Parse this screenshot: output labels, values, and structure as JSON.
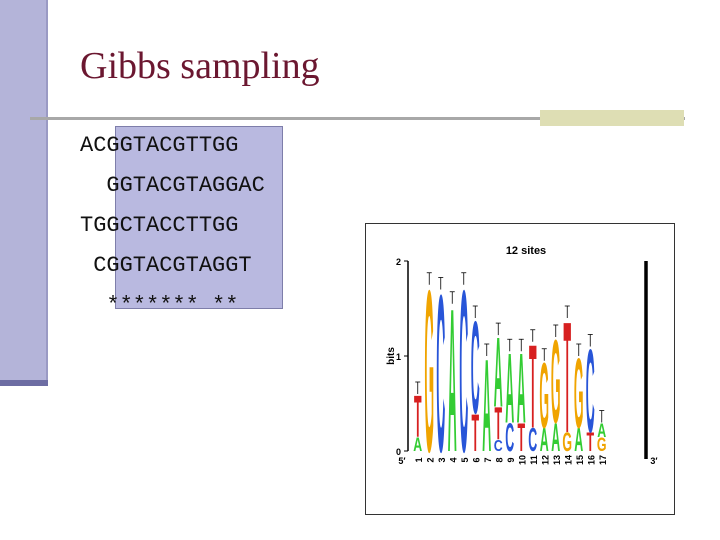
{
  "slide": {
    "title": "Gibbs sampling",
    "sequences": [
      "ACGGTACGTTGG",
      "  GGTACGTAGGAC",
      "TGGCTACCTTGG",
      " CGGTACGTAGGT",
      "  ******* **"
    ]
  },
  "logo": {
    "title": "12 sites",
    "ylabel": "bits",
    "y_ticks": [
      "0",
      "1",
      "2"
    ],
    "x_positions": [
      "5′",
      "1",
      "2",
      "3",
      "4",
      "5",
      "6",
      "7",
      "8",
      "9",
      "10",
      "11",
      "12",
      "13",
      "14",
      "15",
      "16",
      "17",
      "3′"
    ],
    "colors": {
      "A": "#33cc33",
      "C": "#2855d8",
      "G": "#f0a400",
      "T": "#d72020"
    },
    "columns": [
      {
        "pos": "1",
        "letters": [
          [
            "A",
            0.15
          ],
          [
            "T",
            0.45
          ]
        ]
      },
      {
        "pos": "2",
        "letters": [
          [
            "G",
            1.75
          ]
        ]
      },
      {
        "pos": "3",
        "letters": [
          [
            "C",
            1.7
          ]
        ]
      },
      {
        "pos": "4",
        "letters": [
          [
            "A",
            1.55
          ]
        ]
      },
      {
        "pos": "5",
        "letters": [
          [
            "C",
            1.75
          ]
        ]
      },
      {
        "pos": "6",
        "letters": [
          [
            "T",
            0.4
          ],
          [
            "C",
            1.0
          ]
        ]
      },
      {
        "pos": "7",
        "letters": [
          [
            "A",
            1.0
          ]
        ]
      },
      {
        "pos": "8",
        "letters": [
          [
            "C",
            0.12
          ],
          [
            "T",
            0.35
          ],
          [
            "A",
            0.75
          ]
        ]
      },
      {
        "pos": "9",
        "letters": [
          [
            "C",
            0.3
          ],
          [
            "A",
            0.75
          ]
        ]
      },
      {
        "pos": "10",
        "letters": [
          [
            "T",
            0.3
          ],
          [
            "A",
            0.75
          ]
        ]
      },
      {
        "pos": "11",
        "letters": [
          [
            "C",
            0.25
          ],
          [
            "T",
            0.9
          ]
        ]
      },
      {
        "pos": "12",
        "letters": [
          [
            "A",
            0.25
          ],
          [
            "G",
            0.7
          ]
        ]
      },
      {
        "pos": "13",
        "letters": [
          [
            "A",
            0.3
          ],
          [
            "G",
            0.9
          ]
        ]
      },
      {
        "pos": "14",
        "letters": [
          [
            "G",
            0.2
          ],
          [
            "T",
            1.2
          ]
        ]
      },
      {
        "pos": "15",
        "letters": [
          [
            "A",
            0.25
          ],
          [
            "G",
            0.75
          ]
        ]
      },
      {
        "pos": "16",
        "letters": [
          [
            "T",
            0.2
          ],
          [
            "C",
            0.9
          ]
        ]
      },
      {
        "pos": "17",
        "letters": [
          [
            "G",
            0.15
          ],
          [
            "A",
            0.15
          ]
        ]
      }
    ]
  }
}
